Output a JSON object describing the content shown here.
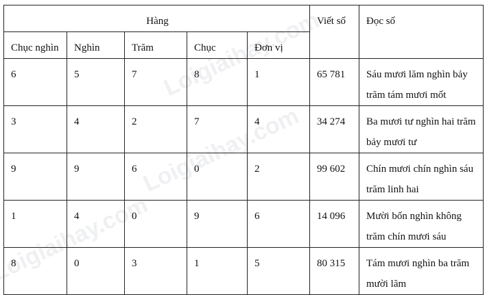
{
  "watermark": "Loigiaihay.com",
  "header": {
    "group": "Hàng",
    "write": "Viết số",
    "read": "Đọc số",
    "columns": [
      "Chục nghìn",
      "Nghìn",
      "Trăm",
      "Chục",
      "Đơn vị"
    ]
  },
  "rows": [
    {
      "digits": [
        "6",
        "5",
        "7",
        "8",
        "1"
      ],
      "write": "65 781",
      "read": "Sáu mươi lăm nghìn bảy trăm tám mươi mốt"
    },
    {
      "digits": [
        "3",
        "4",
        "2",
        "7",
        "4"
      ],
      "write": "34 274",
      "read": "Ba mươi tư nghìn hai trăm bảy mươi tư"
    },
    {
      "digits": [
        "9",
        "9",
        "6",
        "0",
        "2"
      ],
      "write": "99 602",
      "read": "Chín mươi chín nghìn sáu trăm linh hai"
    },
    {
      "digits": [
        "1",
        "4",
        "0",
        "9",
        "6"
      ],
      "write": "14 096",
      "read": "Mười bốn nghìn không trăm chín mươi sáu"
    },
    {
      "digits": [
        "8",
        "0",
        "3",
        "1",
        "5"
      ],
      "write": "80 315",
      "read": "Tám mươi nghìn ba trăm mười lăm"
    }
  ]
}
